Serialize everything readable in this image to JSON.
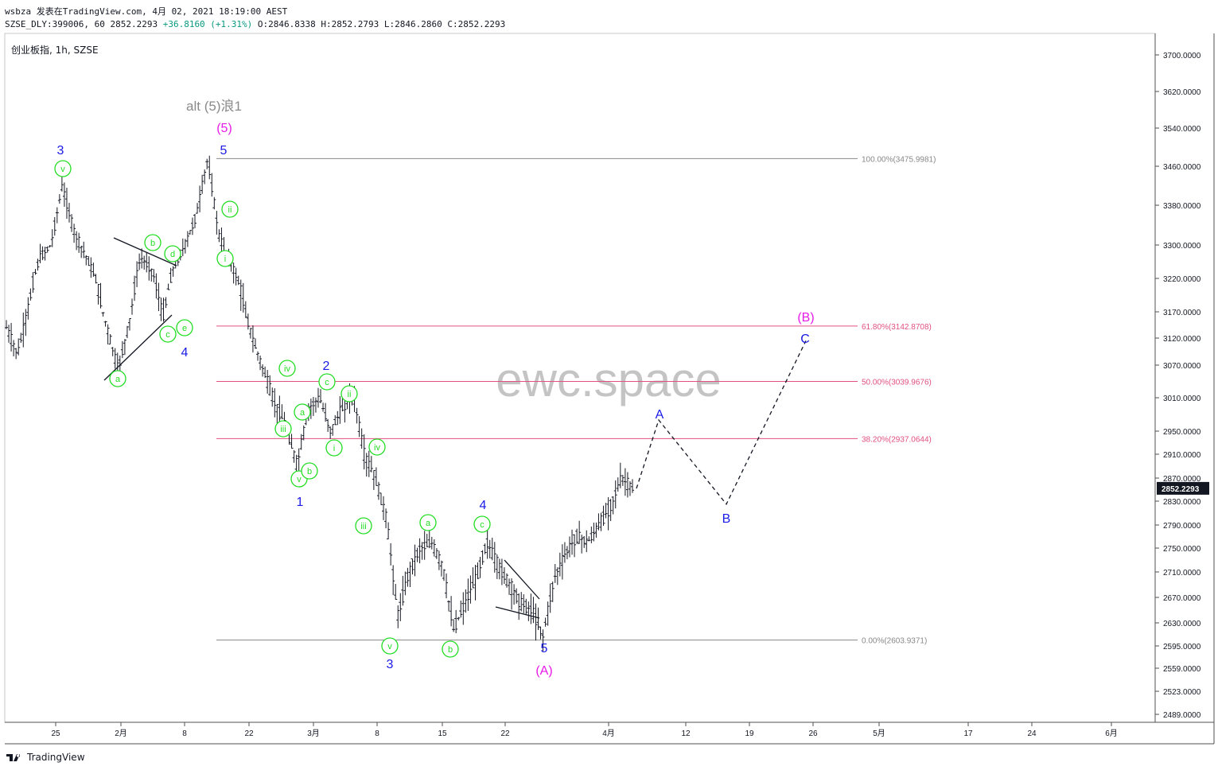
{
  "header": {
    "line1": "wsbza 发表在TradingView.com, 4月 02, 2021 18:19:00 AEST",
    "symbol": "SZSE_DLY:399006, 60",
    "last": "2852.2293",
    "change": "+36.8160 (+1.31%)",
    "o_label": "O:",
    "o": "2846.8338",
    "h_label": "H:",
    "h": "2852.2793",
    "l_label": "L:",
    "l": "2846.2860",
    "c_label": "C:",
    "c": "2852.2293"
  },
  "symbol_title": "创业板指, 1h, SZSE",
  "watermark": "ewc.space",
  "footer_brand": "TradingView",
  "colors": {
    "wave_blue": "#1a1ae6",
    "wave_magenta": "#e61ae6",
    "wave_green": "#22dd22",
    "gray": "#8a8a8a",
    "fib_line": "#e05080",
    "candle": "#131722",
    "price_tag_bg": "#131722"
  },
  "chart_data": {
    "type": "line",
    "title": "创业板指, 1h, SZSE",
    "price_axis_ticks": [
      "3700.0000",
      "3620.0000",
      "3540.0000",
      "3460.0000",
      "3380.0000",
      "3300.0000",
      "3220.0000",
      "3170.0000",
      "3120.0000",
      "3070.0000",
      "3010.0000",
      "2950.0000",
      "2910.0000",
      "2870.0000",
      "2830.0000",
      "2790.0000",
      "2750.0000",
      "2710.0000",
      "2670.0000",
      "2630.0000",
      "2595.0000",
      "2559.0000",
      "2523.0000",
      "2489.0000"
    ],
    "time_axis_ticks": [
      "25",
      "2月",
      "8",
      "22",
      "3月",
      "8",
      "15",
      "22",
      "4月",
      "12",
      "19",
      "26",
      "5月",
      "17",
      "24",
      "6月"
    ],
    "current_price_label": "2852.2293",
    "fib_levels": [
      {
        "label": "100.00%(3475.9981)",
        "value": 3475.9981
      },
      {
        "label": "61.80%(3142.8708)",
        "value": 3142.8708
      },
      {
        "label": "50.00%(3039.9676)",
        "value": 3039.9676
      },
      {
        "label": "38.20%(2937.0644)",
        "value": 2937.0644
      },
      {
        "label": "0.00%(2603.9371)",
        "value": 2603.9371
      }
    ],
    "price_path_approx": [
      3140,
      3090,
      3180,
      3270,
      3300,
      3420,
      3330,
      3280,
      3220,
      3140,
      3060,
      3150,
      3270,
      3240,
      3160,
      3250,
      3300,
      3360,
      3476,
      3320,
      3260,
      3200,
      3120,
      3060,
      3000,
      2960,
      2890,
      2990,
      3010,
      2950,
      2990,
      3020,
      2910,
      2870,
      2800,
      2640,
      2710,
      2750,
      2760,
      2720,
      2620,
      2660,
      2700,
      2760,
      2720,
      2690,
      2660,
      2650,
      2610,
      2700,
      2740,
      2770,
      2760,
      2790,
      2820,
      2870,
      2852
    ],
    "projection_path": [
      2852,
      2970,
      2825,
      3115
    ],
    "labels": {
      "alt_title": "alt (5)浪1",
      "top_5": "(5)",
      "w3": "3",
      "w5": "5",
      "w4": "4",
      "w1": "1",
      "w2": "2",
      "w3b": "3",
      "w4b": "4",
      "w5b": "5",
      "A_big": "(A)",
      "B_big": "(B)",
      "A": "A",
      "B": "B",
      "C": "C"
    },
    "circled_labels": [
      "v",
      "b",
      "d",
      "a",
      "c",
      "e",
      "ii",
      "i",
      "iv",
      "a",
      "c",
      "ii",
      "iii",
      "i",
      "v",
      "b",
      "iv",
      "iii",
      "a",
      "c",
      "v",
      "b"
    ]
  }
}
